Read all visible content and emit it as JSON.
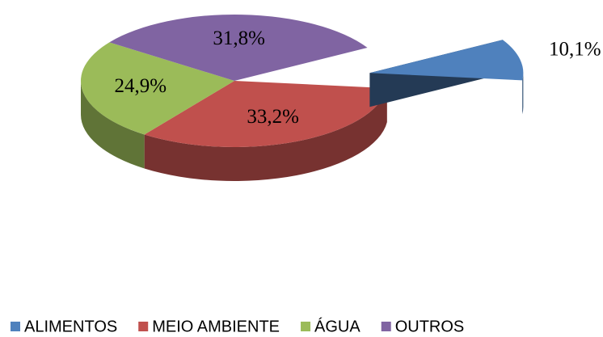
{
  "chart_data": {
    "type": "pie3d",
    "categories": [
      "ALIMENTOS",
      "MEIO AMBIENTE",
      "ÁGUA",
      "OUTROS"
    ],
    "values": [
      10.1,
      33.2,
      24.9,
      31.8
    ],
    "value_labels": [
      "10,1%",
      "33,2%",
      "24,9%",
      "31,8%"
    ],
    "colors": [
      "#4f81bd",
      "#c0504d",
      "#9bbb59",
      "#8064a2"
    ],
    "exploded": [
      true,
      false,
      false,
      false
    ],
    "legend": "bottom"
  }
}
